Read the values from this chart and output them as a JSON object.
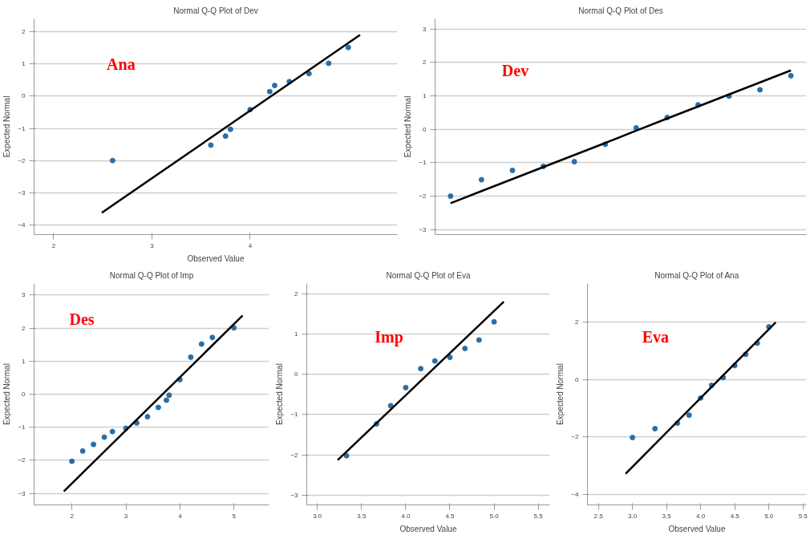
{
  "chart_data": [
    {
      "type": "scatter",
      "title": "Normal Q-Q Plot of Dev",
      "xlabel": "Observed Value",
      "ylabel": "Expected Normal",
      "annotations": [
        "Ana"
      ],
      "xlim": [
        1.8,
        5.5
      ],
      "ylim": [
        -4.3,
        2.4
      ],
      "xticks": [
        2,
        3,
        4
      ],
      "yticks": [
        -4,
        -3,
        -2,
        -1,
        0,
        1,
        2
      ],
      "grid": "y",
      "series": [
        {
          "type": "scatter",
          "color": "#2a6ea6",
          "marker": "circle",
          "x": [
            2.6,
            3.6,
            3.75,
            3.8,
            4.0,
            4.2,
            4.25,
            4.4,
            4.6,
            4.8,
            5.0
          ],
          "values": [
            -2.0,
            -1.52,
            -1.24,
            -1.03,
            -0.42,
            0.14,
            0.33,
            0.45,
            0.7,
            1.02,
            1.51
          ]
        },
        {
          "type": "line",
          "color": "#000000",
          "x": [
            2.49,
            5.12
          ],
          "values": [
            -3.62,
            1.9
          ]
        }
      ]
    },
    {
      "type": "scatter",
      "title": "Normal Q-Q Plot of Des",
      "ylabel": "Expected Normal",
      "annotations": [
        "Dev"
      ],
      "categories": [
        null,
        null,
        null,
        null,
        null,
        null,
        null,
        null,
        null,
        null,
        null,
        null
      ],
      "ylim": [
        -3.15,
        3.3
      ],
      "yticks": [
        -3,
        -2,
        -1,
        0,
        1,
        2,
        3
      ],
      "grid": "y",
      "tick_labels": "y",
      "series": [
        {
          "type": "scatter",
          "color": "#2a6ea6",
          "marker": "circle",
          "values": [
            -2.0,
            -1.51,
            -1.23,
            -1.11,
            -0.97,
            -0.45,
            0.04,
            0.35,
            0.73,
            0.99,
            1.18,
            1.6
          ]
        },
        {
          "type": "line",
          "color": "#000000",
          "values": [
            -2.21,
            -1.85,
            -1.49,
            -1.13,
            -0.77,
            -0.41,
            -0.04,
            0.32,
            0.68,
            1.04,
            1.4,
            1.76
          ]
        }
      ]
    },
    {
      "type": "scatter",
      "title": "Normal Q-Q Plot of Imp",
      "ylabel": "Expected Normal",
      "annotations": [
        "Des"
      ],
      "xlim": [
        1.3,
        5.65
      ],
      "ylim": [
        -3.35,
        3.35
      ],
      "xticks": [
        2,
        3,
        4,
        5
      ],
      "yticks": [
        -3,
        -2,
        -1,
        0,
        1,
        2,
        3
      ],
      "grid": "y",
      "series": [
        {
          "type": "scatter",
          "color": "#2a6ea6",
          "marker": "circle",
          "x": [
            2.0,
            2.2,
            2.4,
            2.6,
            2.75,
            3.0,
            3.2,
            3.4,
            3.6,
            3.75,
            3.8,
            4.0,
            4.2,
            4.4,
            4.6,
            5.0
          ],
          "values": [
            -2.03,
            -1.72,
            -1.52,
            -1.3,
            -1.13,
            -1.03,
            -0.87,
            -0.68,
            -0.4,
            -0.18,
            -0.03,
            0.44,
            1.12,
            1.52,
            1.72,
            2.01
          ]
        },
        {
          "type": "line",
          "color": "#000000",
          "x": [
            1.85,
            5.16
          ],
          "values": [
            -2.94,
            2.38
          ]
        }
      ]
    },
    {
      "type": "scatter",
      "title": "Normal Q-Q Plot of Eva",
      "xlabel": "Observed Value",
      "ylabel": "Expected Normal",
      "annotations": [
        "Imp"
      ],
      "xlim": [
        2.88,
        5.63
      ],
      "ylim": [
        -3.24,
        2.25
      ],
      "xticks": [
        {
          "value": 3,
          "label": "3.0"
        },
        3.5,
        {
          "value": 4,
          "label": "4.0"
        },
        4.5,
        {
          "value": 5,
          "label": "5.0"
        },
        5.5
      ],
      "yticks": [
        -3,
        -2,
        -1,
        0,
        1,
        2
      ],
      "grid": "y",
      "series": [
        {
          "type": "scatter",
          "color": "#2a6ea6",
          "marker": "circle",
          "x": [
            3.33,
            3.67,
            3.83,
            4.0,
            4.17,
            4.33,
            4.5,
            4.67,
            4.83,
            5.0
          ],
          "values": [
            -2.02,
            -1.23,
            -0.78,
            -0.33,
            0.14,
            0.33,
            0.42,
            0.64,
            0.85,
            1.3
          ]
        },
        {
          "type": "line",
          "color": "#000000",
          "x": [
            3.23,
            5.11
          ],
          "values": [
            -2.13,
            1.8
          ]
        }
      ]
    },
    {
      "type": "scatter",
      "title": "Normal Q-Q Plot of Ana",
      "xlabel": "Observed Value",
      "ylabel": "Expected Normal",
      "annotations": [
        "Eva"
      ],
      "xlim": [
        2.34,
        5.55
      ],
      "ylim": [
        -4.37,
        3.35
      ],
      "xticks": [
        2.5,
        {
          "value": 3,
          "label": "3.0"
        },
        3.5,
        {
          "value": 4,
          "label": "4.0"
        },
        4.5,
        {
          "value": 5,
          "label": "5.0"
        },
        5.5
      ],
      "yticks": [
        -4,
        -2,
        0,
        2
      ],
      "grid": "y",
      "series": [
        {
          "type": "scatter",
          "color": "#2a6ea6",
          "marker": "circle",
          "x": [
            3.0,
            3.33,
            3.66,
            3.83,
            4.0,
            4.16,
            4.33,
            4.5,
            4.66,
            4.83,
            5.0
          ],
          "values": [
            -2.02,
            -1.71,
            -1.52,
            -1.24,
            -0.64,
            -0.2,
            0.07,
            0.49,
            0.88,
            1.27,
            1.84
          ]
        },
        {
          "type": "line",
          "color": "#000000",
          "x": [
            2.9,
            5.1
          ],
          "values": [
            -3.28,
            2.0
          ]
        }
      ]
    }
  ]
}
